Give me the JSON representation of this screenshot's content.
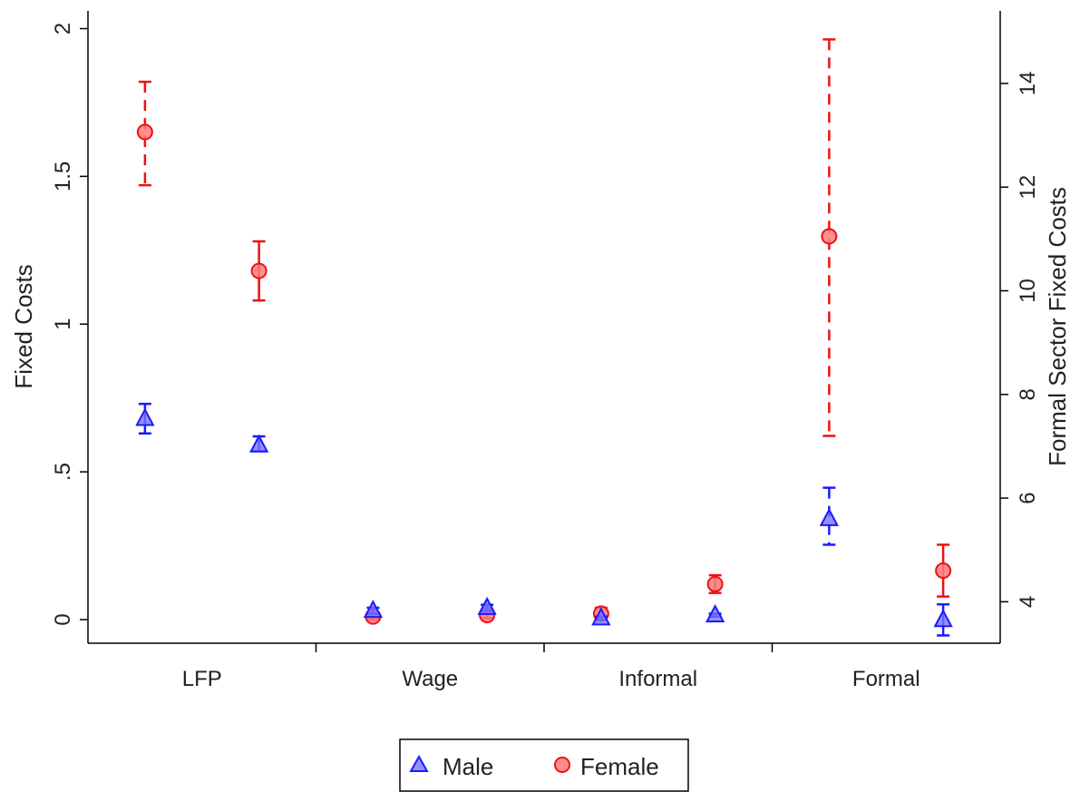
{
  "chart_data": {
    "type": "scatter",
    "subtype": "dot plot with error bars, dual y-axis",
    "categories": [
      "LFP",
      "Wage",
      "Informal",
      "Formal"
    ],
    "left_axis": {
      "label": "Fixed Costs",
      "range": [
        -0.08,
        2.06
      ],
      "ticks": [
        {
          "value": 0,
          "label": "0"
        },
        {
          "value": 0.5,
          "label": ".5"
        },
        {
          "value": 1,
          "label": "1"
        },
        {
          "value": 1.5,
          "label": "1.5"
        },
        {
          "value": 2,
          "label": "2"
        }
      ]
    },
    "right_axis": {
      "label": "Formal Sector Fixed Costs",
      "range": [
        3.2,
        15.4
      ],
      "ticks": [
        {
          "value": 4,
          "label": "4"
        },
        {
          "value": 6,
          "label": "6"
        },
        {
          "value": 8,
          "label": "8"
        },
        {
          "value": 10,
          "label": "10"
        },
        {
          "value": 12,
          "label": "12"
        },
        {
          "value": 14,
          "label": "14"
        }
      ]
    },
    "grid": false,
    "legend": {
      "position": "bottom-center",
      "entries": [
        "Male",
        "Female"
      ]
    },
    "series": [
      {
        "name": "Male",
        "marker": "triangle",
        "color": "#1a1aff",
        "points": [
          {
            "category": "LFP",
            "subgroup": 1,
            "axis": "left",
            "y": 0.68,
            "low": 0.63,
            "high": 0.73,
            "dashed": false
          },
          {
            "category": "LFP",
            "subgroup": 2,
            "axis": "left",
            "y": 0.59,
            "low": 0.57,
            "high": 0.62,
            "dashed": false
          },
          {
            "category": "Wage",
            "subgroup": 1,
            "axis": "left",
            "y": 0.03,
            "low": 0.02,
            "high": 0.04,
            "dashed": false
          },
          {
            "category": "Wage",
            "subgroup": 2,
            "axis": "left",
            "y": 0.04,
            "low": 0.03,
            "high": 0.05,
            "dashed": false
          },
          {
            "category": "Informal",
            "subgroup": 1,
            "axis": "left",
            "y": 0.005,
            "low": 0.0,
            "high": 0.01,
            "dashed": false
          },
          {
            "category": "Informal",
            "subgroup": 2,
            "axis": "left",
            "y": 0.015,
            "low": 0.01,
            "high": 0.02,
            "dashed": false
          },
          {
            "category": "Formal",
            "subgroup": 1,
            "axis": "right",
            "y": 5.6,
            "low": 5.1,
            "high": 6.2,
            "dashed": true
          },
          {
            "category": "Formal",
            "subgroup": 2,
            "axis": "right",
            "y": 3.65,
            "low": 3.35,
            "high": 3.95,
            "dashed": false
          }
        ]
      },
      {
        "name": "Female",
        "marker": "circle",
        "color": "#ee1111",
        "points": [
          {
            "category": "LFP",
            "subgroup": 1,
            "axis": "left",
            "y": 1.65,
            "low": 1.47,
            "high": 1.82,
            "dashed": true
          },
          {
            "category": "LFP",
            "subgroup": 2,
            "axis": "left",
            "y": 1.18,
            "low": 1.08,
            "high": 1.28,
            "dashed": false
          },
          {
            "category": "Wage",
            "subgroup": 1,
            "axis": "left",
            "y": 0.01,
            "low": 0.0,
            "high": 0.02,
            "dashed": false
          },
          {
            "category": "Wage",
            "subgroup": 2,
            "axis": "left",
            "y": 0.015,
            "low": 0.005,
            "high": 0.025,
            "dashed": false
          },
          {
            "category": "Informal",
            "subgroup": 1,
            "axis": "left",
            "y": 0.02,
            "low": 0.0,
            "high": 0.04,
            "dashed": false
          },
          {
            "category": "Informal",
            "subgroup": 2,
            "axis": "left",
            "y": 0.12,
            "low": 0.09,
            "high": 0.15,
            "dashed": false
          },
          {
            "category": "Formal",
            "subgroup": 1,
            "axis": "right",
            "y": 11.05,
            "low": 7.2,
            "high": 14.85,
            "dashed": true
          },
          {
            "category": "Formal",
            "subgroup": 2,
            "axis": "right",
            "y": 4.6,
            "low": 4.1,
            "high": 5.1,
            "dashed": false
          }
        ]
      }
    ]
  }
}
